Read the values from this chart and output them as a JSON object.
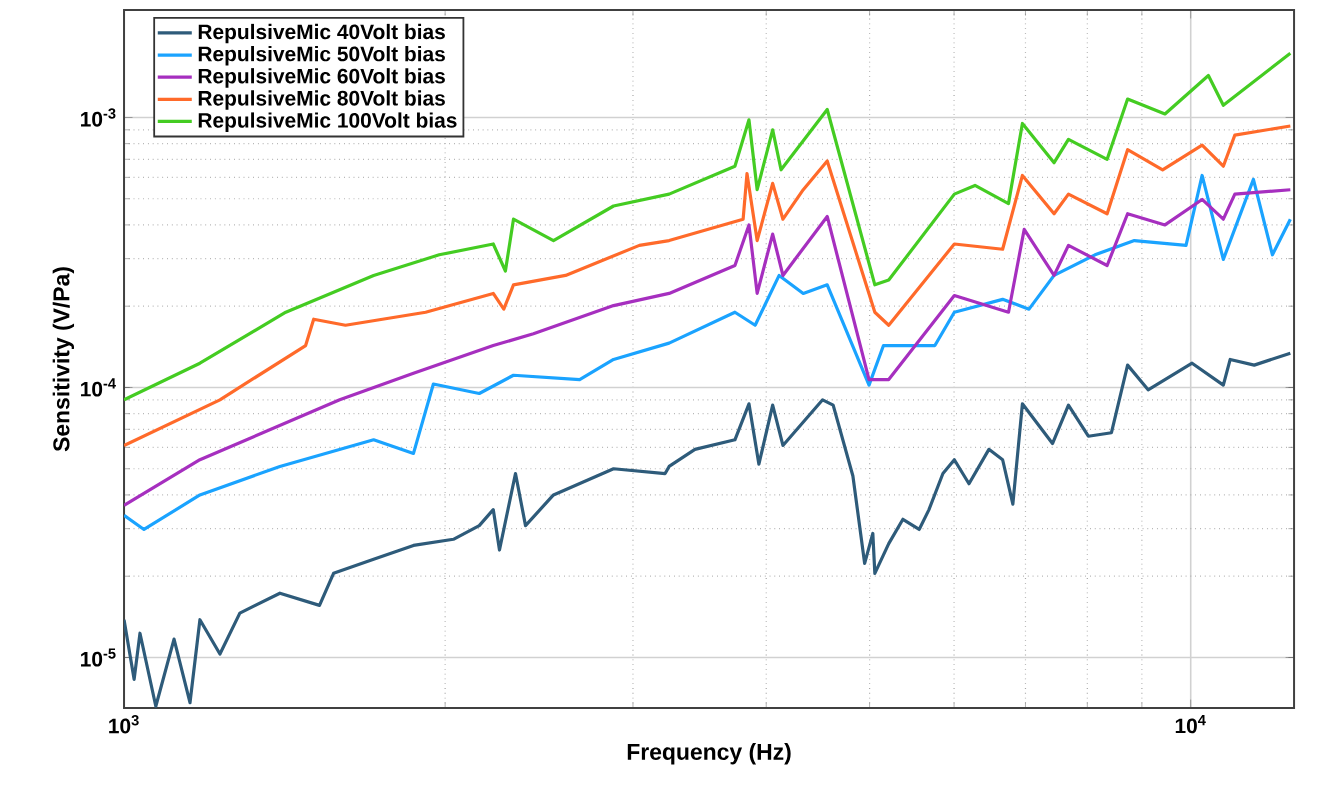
{
  "chart_data": {
    "type": "line",
    "xlabel": "Frequency (Hz)",
    "ylabel": "Sensitivity (V/Pa)",
    "log": "xy",
    "grid": true,
    "legend": "top left",
    "marker": "none",
    "line_style": "solid",
    "xlim": [
      1000,
      12500
    ],
    "ylim": [
      6.5e-06,
      0.0025
    ],
    "xticks": [
      {
        "value": 1000,
        "label": "10$^{3}$"
      },
      {
        "value": 10000,
        "label": "10$^{4}$"
      }
    ],
    "yticks": [
      {
        "value": 1e-05,
        "label": "10$^{-5}$"
      },
      {
        "value": 0.0001,
        "label": "10$^{-4}$"
      },
      {
        "value": 0.001,
        "label": "10$^{-3}$"
      }
    ],
    "series": [
      {
        "name": "RepulsiveMic 40Volt bias",
        "color": "#2e5b7a",
        "x": [
          1000,
          1022,
          1035,
          1071,
          1114,
          1153,
          1178,
          1230,
          1284,
          1400,
          1525,
          1572,
          1714,
          1868,
          2036,
          2153,
          2219,
          2249,
          2328,
          2379,
          2527,
          2877,
          3216,
          3244,
          3430,
          3739,
          3854,
          3938,
          4056,
          4147,
          4518,
          4622,
          4823,
          4947,
          5035,
          5057,
          5211,
          5373,
          5565,
          5684,
          5858,
          6004,
          6197,
          6469,
          6664,
          6812,
          6954,
          7421,
          7681,
          8018,
          8428,
          8727,
          9122,
          10030,
          10730,
          10890,
          11470,
          12400
        ],
        "values": [
          1.38e-05,
          8.3e-06,
          1.23e-05,
          6.6e-06,
          1.17e-05,
          6.8e-06,
          1.38e-05,
          1.03e-05,
          1.46e-05,
          1.73e-05,
          1.56e-05,
          2.05e-05,
          2.31e-05,
          2.6e-05,
          2.74e-05,
          3.08e-05,
          3.53e-05,
          2.5e-05,
          4.8e-05,
          3.08e-05,
          4e-05,
          5e-05,
          4.8e-05,
          5.1e-05,
          5.9e-05,
          6.4e-05,
          8.7e-05,
          5.2e-05,
          8.6e-05,
          6.1e-05,
          9e-05,
          8.6e-05,
          4.7e-05,
          2.23e-05,
          2.88e-05,
          2.05e-05,
          2.64e-05,
          3.25e-05,
          2.98e-05,
          3.53e-05,
          4.8e-05,
          5.4e-05,
          4.4e-05,
          5.9e-05,
          5.4e-05,
          3.7e-05,
          8.7e-05,
          6.2e-05,
          8.6e-05,
          6.6e-05,
          6.8e-05,
          0.000121,
          9.8e-05,
          0.000123,
          0.000102,
          0.000127,
          0.000121,
          0.000134
        ]
      },
      {
        "name": "RepulsiveMic 50Volt bias",
        "color": "#1aa3ff",
        "x": [
          1000,
          1044,
          1178,
          1400,
          1714,
          1868,
          1950,
          2153,
          2318,
          2674,
          2877,
          3244,
          3739,
          3906,
          4113,
          4333,
          4563,
          4994,
          5152,
          5757,
          6004,
          6664,
          7055,
          7447,
          8134,
          8855,
          9900,
          10250,
          10730,
          11450,
          11930,
          12400
        ],
        "values": [
          3.36e-05,
          2.98e-05,
          4e-05,
          5.1e-05,
          6.4e-05,
          5.7e-05,
          0.000103,
          9.5e-05,
          0.000111,
          0.000107,
          0.000127,
          0.000146,
          0.00019,
          0.00017,
          0.00026,
          0.000223,
          0.00024,
          0.000102,
          0.000143,
          0.000143,
          0.00019,
          0.000212,
          0.000195,
          0.00026,
          0.00031,
          0.00035,
          0.000336,
          0.00061,
          0.000298,
          0.00059,
          0.00031,
          0.00042
        ]
      },
      {
        "name": "RepulsiveMic 60Volt bias",
        "color": "#a62fbf",
        "x": [
          1000,
          1178,
          1593,
          1868,
          2219,
          2420,
          2877,
          3244,
          3739,
          3854,
          3923,
          4056,
          4147,
          4563,
          4994,
          5211,
          6004,
          6749,
          6982,
          7447,
          7681,
          8350,
          8727,
          9460,
          10250,
          10730,
          11000,
          12400
        ],
        "values": [
          3.66e-05,
          5.4e-05,
          9e-05,
          0.000113,
          0.000143,
          0.000158,
          0.000201,
          0.000223,
          0.000283,
          0.0004,
          0.000223,
          0.00037,
          0.00026,
          0.00043,
          0.000107,
          0.000107,
          0.000219,
          0.00019,
          0.000385,
          0.00026,
          0.000336,
          0.000283,
          0.00044,
          0.0004,
          0.000497,
          0.00042,
          0.00052,
          0.00054
        ]
      },
      {
        "name": "RepulsiveMic 80Volt bias",
        "color": "#ff6a2a",
        "x": [
          1000,
          1230,
          1480,
          1506,
          1613,
          1918,
          2219,
          2270,
          2318,
          2594,
          3042,
          3244,
          3806,
          3838,
          3923,
          4056,
          4147,
          4333,
          4563,
          5057,
          5211,
          6004,
          6664,
          6954,
          7447,
          7681,
          8350,
          8727,
          9412,
          10250,
          10730,
          11000,
          12400
        ],
        "values": [
          6.1e-05,
          9e-05,
          0.000143,
          0.000179,
          0.00017,
          0.00019,
          0.000223,
          0.000195,
          0.00024,
          0.00026,
          0.000336,
          0.00035,
          0.00042,
          0.00062,
          0.00035,
          0.00057,
          0.00042,
          0.00054,
          0.00069,
          0.00019,
          0.00017,
          0.00034,
          0.000325,
          0.00061,
          0.00044,
          0.00052,
          0.00044,
          0.00076,
          0.00064,
          0.00079,
          0.00066,
          0.00086,
          0.00093
        ]
      },
      {
        "name": "RepulsiveMic 100Volt bias",
        "color": "#44cc22",
        "x": [
          1000,
          1178,
          1418,
          1714,
          1975,
          2219,
          2278,
          2318,
          2527,
          2877,
          3244,
          3739,
          3854,
          3923,
          4056,
          4130,
          4563,
          5057,
          5211,
          6004,
          6278,
          6749,
          6954,
          7447,
          7681,
          8350,
          8727,
          9460,
          10390,
          10730,
          12400
        ],
        "values": [
          9e-05,
          0.000123,
          0.00019,
          0.00026,
          0.00031,
          0.00034,
          0.00027,
          0.00042,
          0.00035,
          0.00047,
          0.00052,
          0.00066,
          0.00098,
          0.00054,
          0.0009,
          0.00064,
          0.00107,
          0.00024,
          0.00025,
          0.00052,
          0.00056,
          0.00048,
          0.00095,
          0.00068,
          0.00083,
          0.0007,
          0.00117,
          0.00103,
          0.00143,
          0.00111,
          0.00173
        ]
      }
    ]
  }
}
